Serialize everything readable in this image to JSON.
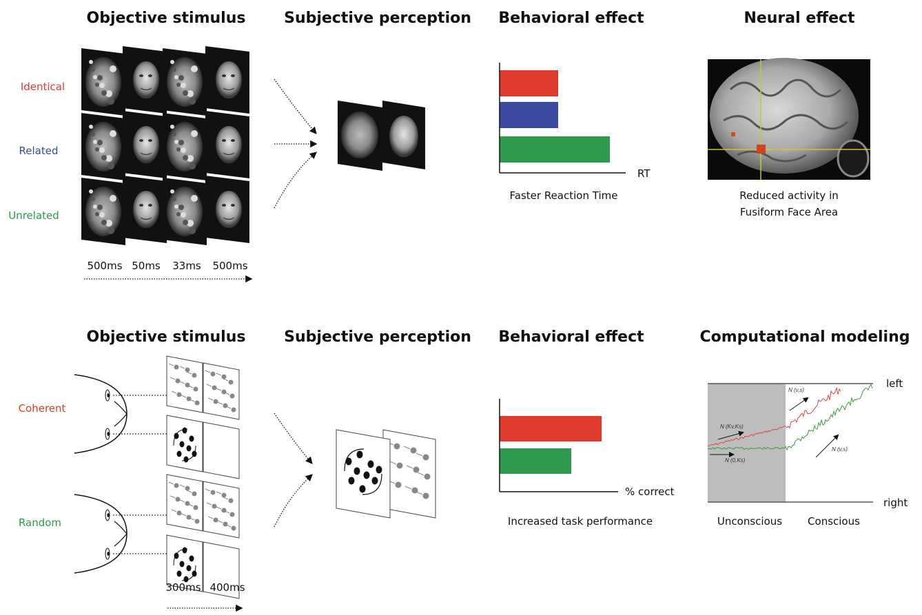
{
  "panel_top": {
    "headers": {
      "objective": "Objective stimulus",
      "subjective": "Subjective perception",
      "behavioral": "Behavioral effect",
      "neural": "Neural effect"
    },
    "conditions": [
      {
        "label": "Identical",
        "color": "#e03a2e"
      },
      {
        "label": "Related",
        "color": "#3b4aa0"
      },
      {
        "label": "Unrelated",
        "color": "#2e9a4e"
      }
    ],
    "timings": [
      "500ms",
      "50ms",
      "33ms",
      "500ms"
    ],
    "axis_label": "RT",
    "behavior_caption": "Faster Reaction Time",
    "neural_caption_lines": [
      "Reduced activity in",
      "Fusiform Face Area"
    ]
  },
  "panel_bottom": {
    "headers": {
      "objective": "Objective stimulus",
      "subjective": "Subjective perception",
      "behavioral": "Behavioral effect",
      "model": "Computational modeling"
    },
    "conditions": [
      {
        "label": "Coherent",
        "color": "#e03a2e"
      },
      {
        "label": "Random",
        "color": "#2e9a4e"
      }
    ],
    "timings": [
      "300ms",
      "400ms"
    ],
    "axis_label": "% correct",
    "behavior_caption": "Increased task performance",
    "model": {
      "left_label": "left",
      "right_label": "right",
      "unconscious_label": "Unconscious",
      "conscious_label": "Conscious",
      "annotations": [
        "N (Kv,Ks)",
        "N (0,Ks)",
        "N (v,s)",
        "N (v,s)"
      ]
    }
  },
  "chart_data": [
    {
      "type": "bar",
      "orientation": "horizontal",
      "categories": [
        "Identical",
        "Related",
        "Unrelated"
      ],
      "values": [
        85,
        85,
        160
      ],
      "colors": [
        "#e03a2e",
        "#3b4aa0",
        "#2e9a4e"
      ],
      "xlabel": "RT",
      "caption": "Faster Reaction Time"
    },
    {
      "type": "bar",
      "orientation": "horizontal",
      "categories": [
        "Coherent",
        "Random"
      ],
      "values": [
        148,
        104
      ],
      "colors": [
        "#e03a2e",
        "#2e9a4e"
      ],
      "xlabel": "% correct",
      "caption": "Increased task performance"
    }
  ]
}
